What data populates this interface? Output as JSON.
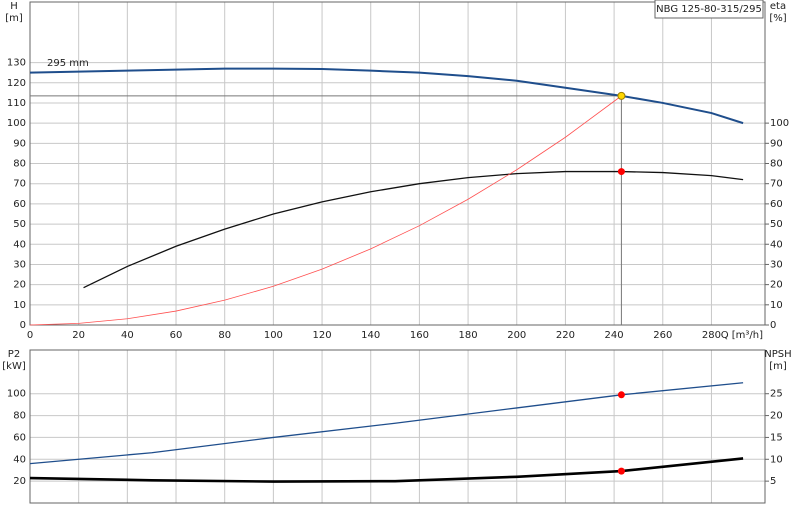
{
  "chart_data": [
    {
      "type": "line",
      "title": "NBG 125-80-315/295",
      "y_label": "H",
      "y_unit": "[m]",
      "y2_label": "eta",
      "y2_unit": "[%]",
      "x_label": "Q [m³/h]",
      "annotation": "295 mm",
      "xlim": [
        0,
        302
      ],
      "xticks": [
        0,
        20,
        40,
        60,
        80,
        100,
        120,
        140,
        160,
        180,
        200,
        220,
        240,
        260,
        280
      ],
      "ylim": [
        0,
        160
      ],
      "yticks": [
        0,
        10,
        20,
        30,
        40,
        50,
        60,
        70,
        80,
        90,
        100,
        110,
        120,
        130
      ],
      "y2lim": [
        0,
        160
      ],
      "y2ticks": [
        0,
        10,
        20,
        30,
        40,
        50,
        60,
        70,
        80,
        90,
        100
      ],
      "grid": true,
      "series": [
        {
          "name": "H",
          "color": "#1f4e8c",
          "x": [
            0,
            20,
            40,
            60,
            80,
            100,
            120,
            140,
            160,
            180,
            200,
            220,
            243,
            260,
            280,
            293
          ],
          "values": [
            125,
            125.5,
            126,
            126.5,
            127,
            127,
            126.8,
            126,
            125,
            123.3,
            121,
            117.5,
            113.5,
            110,
            105,
            100
          ]
        },
        {
          "name": "eta",
          "axis": "y2",
          "color": "#111111",
          "x": [
            22,
            40,
            60,
            80,
            100,
            120,
            140,
            160,
            180,
            200,
            220,
            243,
            260,
            280,
            293
          ],
          "values": [
            18.5,
            29,
            39,
            47.5,
            55,
            61,
            66,
            70,
            73,
            75,
            76,
            76,
            75.5,
            74,
            72
          ]
        },
        {
          "name": "system",
          "color": "#ff5050",
          "x": [
            0,
            20,
            40,
            60,
            80,
            100,
            120,
            140,
            160,
            180,
            200,
            220,
            243
          ],
          "values": [
            0,
            0.8,
            3.1,
            6.9,
            12.3,
            19.2,
            27.7,
            37.7,
            49.2,
            62.3,
            76.9,
            93,
            113.5
          ]
        }
      ],
      "points": [
        {
          "x": 243,
          "y": 113.5,
          "color": "#ffd700"
        },
        {
          "x": 243,
          "y": 76,
          "color": "#ff0000",
          "axis": "y2"
        }
      ]
    },
    {
      "type": "line",
      "y_label": "P2",
      "y_unit": "[kW]",
      "y2_label": "NPSH",
      "y2_unit": "[m]",
      "xlim": [
        0,
        302
      ],
      "ylim": [
        0,
        140
      ],
      "yticks": [
        20,
        40,
        60,
        80,
        100
      ],
      "y2lim": [
        0,
        35
      ],
      "y2ticks": [
        5,
        10,
        15,
        20,
        25
      ],
      "grid": true,
      "series": [
        {
          "name": "P2",
          "color": "#1f4e8c",
          "x": [
            0,
            50,
            100,
            150,
            200,
            243,
            293
          ],
          "values": [
            36,
            46,
            60,
            73,
            87,
            99,
            110
          ]
        },
        {
          "name": "NPSH",
          "axis": "y2",
          "color": "#000000",
          "x": [
            0,
            50,
            100,
            150,
            200,
            243,
            293
          ],
          "values": [
            5.7,
            5.2,
            4.9,
            5.0,
            6.0,
            7.3,
            10.2
          ]
        }
      ],
      "points": [
        {
          "x": 243,
          "y": 99,
          "color": "#ff0000"
        },
        {
          "x": 243,
          "y": 7.3,
          "color": "#ff0000",
          "axis": "y2"
        }
      ]
    }
  ]
}
